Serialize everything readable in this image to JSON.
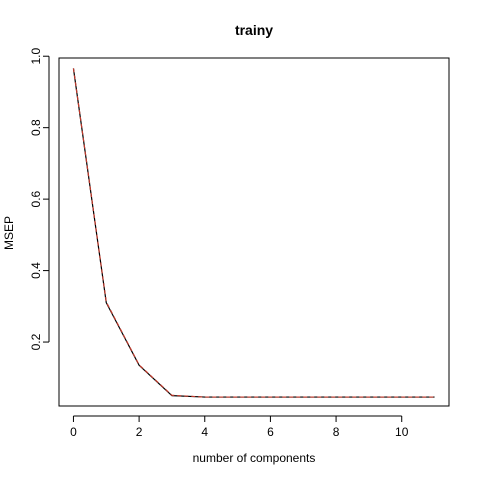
{
  "chart_data": {
    "type": "line",
    "title": "trainy",
    "xlabel": "number of components",
    "ylabel": "MSEP",
    "xlim": [
      -0.44,
      11.44
    ],
    "ylim": [
      0.021,
      0.995
    ],
    "xticks": [
      0,
      2,
      4,
      6,
      8,
      10
    ],
    "xtick_labels": [
      "0",
      "2",
      "4",
      "6",
      "8",
      "10"
    ],
    "yticks": [
      0.2,
      0.4,
      0.6,
      0.8,
      1.0
    ],
    "ytick_labels": [
      "0.2",
      "0.4",
      "0.6",
      "0.8",
      "1.0"
    ],
    "grid": false,
    "series": [
      {
        "color": "#000000",
        "style": "solid",
        "x": [
          0,
          1,
          2,
          3,
          4,
          5,
          6,
          7,
          8,
          9,
          10,
          11
        ],
        "y": [
          0.966,
          0.31,
          0.135,
          0.05,
          0.046,
          0.046,
          0.046,
          0.046,
          0.046,
          0.046,
          0.046,
          0.046
        ]
      },
      {
        "color": "#c0392b",
        "style": "dashed",
        "x": [
          0,
          1,
          2,
          3,
          4,
          5,
          6,
          7,
          8,
          9,
          10,
          11
        ],
        "y": [
          0.966,
          0.312,
          0.136,
          0.051,
          0.046,
          0.046,
          0.046,
          0.046,
          0.046,
          0.046,
          0.046,
          0.046
        ]
      }
    ]
  }
}
